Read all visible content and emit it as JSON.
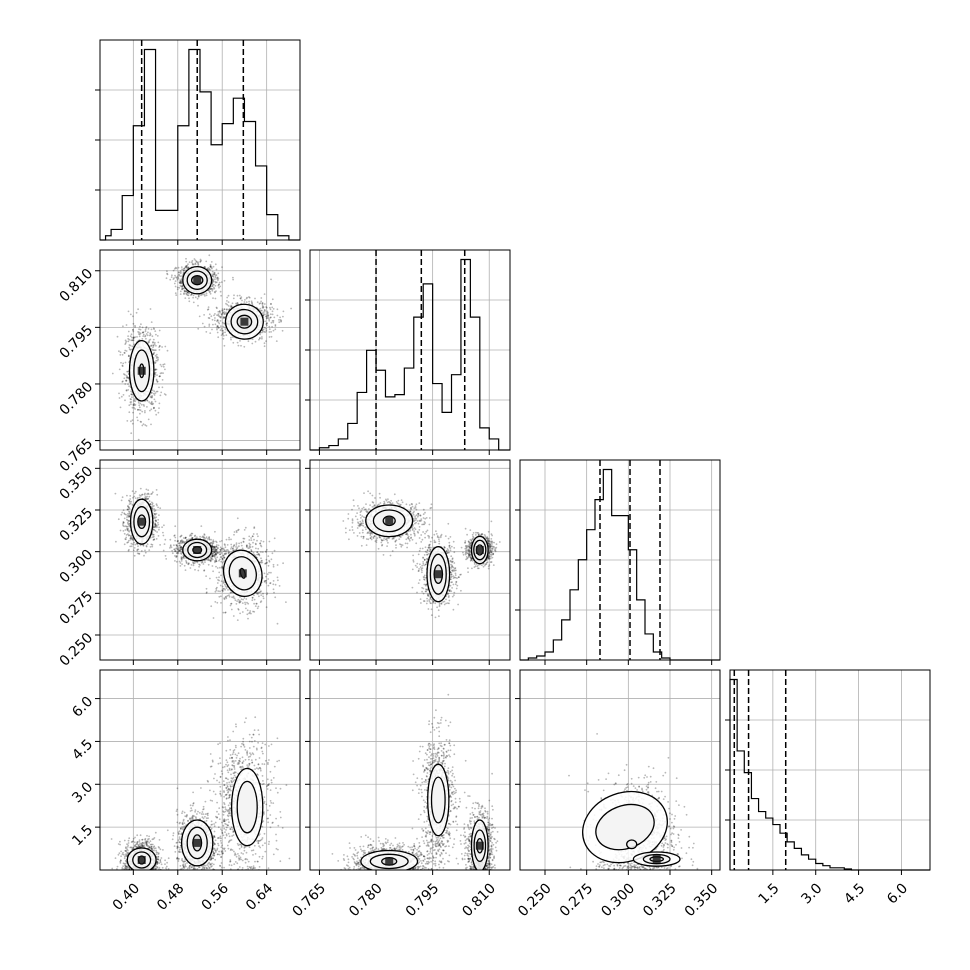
{
  "chart_data": {
    "type": "corner",
    "grid": true,
    "parameters": [
      {
        "range": [
          0.34,
          0.7
        ],
        "ticks": [
          "0.40",
          "0.48",
          "0.56",
          "0.64"
        ]
      },
      {
        "range": [
          0.7625,
          0.8155
        ],
        "ticks": [
          "0.765",
          "0.780",
          "0.795",
          "0.810"
        ]
      },
      {
        "range": [
          0.235,
          0.355
        ],
        "ticks": [
          "0.250",
          "0.275",
          "0.300",
          "0.325",
          "0.350"
        ]
      },
      {
        "range": [
          0.0,
          7.0
        ],
        "ticks": [
          "1.5",
          "3.0",
          "4.5",
          "6.0"
        ]
      }
    ],
    "histograms": [
      {
        "bin_edges": [
          0.34,
          0.35,
          0.36,
          0.37,
          0.38,
          0.39,
          0.4,
          0.41,
          0.42,
          0.43,
          0.44,
          0.45,
          0.46,
          0.47,
          0.48,
          0.49,
          0.5,
          0.51,
          0.52,
          0.53,
          0.54,
          0.55,
          0.56,
          0.57,
          0.58,
          0.59,
          0.6,
          0.61,
          0.62,
          0.63,
          0.64,
          0.65,
          0.66,
          0.67,
          0.68,
          0.69,
          0.7
        ],
        "counts": [
          0,
          0.02,
          0.05,
          0.05,
          0.21,
          0.21,
          0.54,
          0.54,
          0.9,
          0.9,
          0.14,
          0.14,
          0.14,
          0.14,
          0.54,
          0.54,
          0.9,
          0.9,
          0.7,
          0.7,
          0.45,
          0.45,
          0.55,
          0.55,
          0.67,
          0.67,
          0.56,
          0.56,
          0.35,
          0.35,
          0.12,
          0.12,
          0.02,
          0.02,
          0,
          0
        ],
        "quantiles": [
          0.415,
          0.515,
          0.598
        ]
      },
      {
        "bin_edges": [
          0.7625,
          0.765,
          0.7675,
          0.77,
          0.7725,
          0.775,
          0.7775,
          0.78,
          0.7825,
          0.785,
          0.7875,
          0.79,
          0.7925,
          0.795,
          0.7975,
          0.8,
          0.8025,
          0.805,
          0.8075,
          0.81,
          0.8125,
          0.8155
        ],
        "counts": [
          0,
          0.01,
          0.02,
          0.05,
          0.12,
          0.26,
          0.45,
          0.36,
          0.24,
          0.25,
          0.37,
          0.6,
          0.75,
          0.3,
          0.17,
          0.34,
          0.86,
          0.6,
          0.1,
          0.05,
          0
        ],
        "quantiles": [
          0.78,
          0.792,
          0.8035
        ]
      },
      {
        "bin_edges": [
          0.235,
          0.24,
          0.245,
          0.25,
          0.255,
          0.26,
          0.265,
          0.27,
          0.275,
          0.28,
          0.285,
          0.29,
          0.295,
          0.3,
          0.305,
          0.31,
          0.315,
          0.32,
          0.325,
          0.33,
          0.335,
          0.34,
          0.345,
          0.35,
          0.355
        ],
        "counts": [
          0,
          0.01,
          0.02,
          0.04,
          0.1,
          0.2,
          0.35,
          0.5,
          0.65,
          0.8,
          0.95,
          0.72,
          0.72,
          0.55,
          0.3,
          0.13,
          0.04,
          0.01,
          0,
          0,
          0,
          0,
          0,
          0
        ],
        "quantiles": [
          0.283,
          0.301,
          0.319
        ]
      },
      {
        "bin_edges": [
          0.0,
          0.25,
          0.5,
          0.75,
          1.0,
          1.25,
          1.5,
          1.75,
          2.0,
          2.25,
          2.5,
          2.75,
          3.0,
          3.25,
          3.5,
          3.75,
          4.0,
          4.25,
          4.5,
          4.75,
          5.0,
          5.5,
          6.0,
          6.5,
          7.0
        ],
        "counts": [
          0.88,
          0.55,
          0.45,
          0.33,
          0.27,
          0.24,
          0.21,
          0.17,
          0.13,
          0.1,
          0.07,
          0.05,
          0.03,
          0.02,
          0.01,
          0.01,
          0.005,
          0,
          0,
          0,
          0,
          0,
          0,
          0
        ],
        "quantiles": [
          0.15,
          0.65,
          1.95
        ]
      }
    ],
    "scatter_blobs": [
      {
        "pair": [
          1,
          0
        ],
        "cx": 0.415,
        "cy": 0.7835,
        "sx": 0.016,
        "sy": 0.0055
      },
      {
        "pair": [
          1,
          0
        ],
        "cx": 0.515,
        "cy": 0.8075,
        "sx": 0.018,
        "sy": 0.002
      },
      {
        "pair": [
          1,
          0
        ],
        "cx": 0.598,
        "cy": 0.797,
        "sx": 0.026,
        "sy": 0.0025
      },
      {
        "pair": [
          2,
          0
        ],
        "cx": 0.415,
        "cy": 0.318,
        "sx": 0.014,
        "sy": 0.008
      },
      {
        "pair": [
          2,
          0
        ],
        "cx": 0.515,
        "cy": 0.301,
        "sx": 0.02,
        "sy": 0.004
      },
      {
        "pair": [
          2,
          0
        ],
        "cx": 0.598,
        "cy": 0.287,
        "sx": 0.024,
        "sy": 0.01
      },
      {
        "pair": [
          2,
          1
        ],
        "cx": 0.7835,
        "cy": 0.318,
        "sx": 0.0045,
        "sy": 0.006
      },
      {
        "pair": [
          2,
          1
        ],
        "cx": 0.7965,
        "cy": 0.287,
        "sx": 0.0022,
        "sy": 0.009
      },
      {
        "pair": [
          2,
          1
        ],
        "cx": 0.8075,
        "cy": 0.301,
        "sx": 0.0016,
        "sy": 0.004
      },
      {
        "pair": [
          3,
          0
        ],
        "cx": 0.415,
        "cy": 0.35,
        "sx": 0.016,
        "sy": 0.35
      },
      {
        "pair": [
          3,
          0
        ],
        "cx": 0.515,
        "cy": 0.9,
        "sx": 0.018,
        "sy": 0.55
      },
      {
        "pair": [
          3,
          0
        ],
        "cx": 0.598,
        "cy": 2.3,
        "sx": 0.026,
        "sy": 1.1
      },
      {
        "pair": [
          3,
          1
        ],
        "cx": 0.7835,
        "cy": 0.3,
        "sx": 0.005,
        "sy": 0.3
      },
      {
        "pair": [
          3,
          1
        ],
        "cx": 0.7965,
        "cy": 2.5,
        "sx": 0.0022,
        "sy": 1.1
      },
      {
        "pair": [
          3,
          1
        ],
        "cx": 0.8075,
        "cy": 0.8,
        "sx": 0.0017,
        "sy": 0.6
      },
      {
        "pair": [
          3,
          2
        ],
        "cx": 0.305,
        "cy": 1.2,
        "sx": 0.012,
        "sy": 1.0
      }
    ],
    "contours": [
      {
        "pair": [
          1,
          0
        ],
        "cx": 0.415,
        "cy": 0.7835,
        "rx": [
          0.022,
          0.014,
          0.004
        ],
        "ry": [
          0.008,
          0.0055,
          0.0018
        ],
        "angle": 0
      },
      {
        "pair": [
          1,
          0
        ],
        "cx": 0.515,
        "cy": 0.8075,
        "rx": [
          0.026,
          0.018,
          0.01
        ],
        "ry": [
          0.0036,
          0.0024,
          0.0012
        ],
        "angle": 0
      },
      {
        "pair": [
          1,
          0
        ],
        "cx": 0.6,
        "cy": 0.7965,
        "rx": [
          0.034,
          0.024,
          0.013
        ],
        "ry": [
          0.0046,
          0.0032,
          0.0017
        ],
        "angle": -0.08
      },
      {
        "pair": [
          2,
          0
        ],
        "cx": 0.415,
        "cy": 0.318,
        "rx": [
          0.02,
          0.014,
          0.007
        ],
        "ry": [
          0.0135,
          0.009,
          0.004
        ],
        "angle": 0
      },
      {
        "pair": [
          2,
          0
        ],
        "cx": 0.515,
        "cy": 0.301,
        "rx": [
          0.026,
          0.017,
          0.008
        ],
        "ry": [
          0.0065,
          0.0045,
          0.002
        ],
        "angle": 0
      },
      {
        "pair": [
          2,
          0
        ],
        "cx": 0.597,
        "cy": 0.287,
        "rx": [
          0.034,
          0.024,
          0.004
        ],
        "ry": [
          0.014,
          0.01,
          0.003
        ],
        "angle": 0.25
      },
      {
        "pair": [
          2,
          1
        ],
        "cx": 0.7835,
        "cy": 0.3185,
        "rx": [
          0.0062,
          0.0042,
          0.0016
        ],
        "ry": [
          0.0095,
          0.0065,
          0.0028
        ],
        "angle": 0
      },
      {
        "pair": [
          2,
          1
        ],
        "cx": 0.7965,
        "cy": 0.2865,
        "rx": [
          0.003,
          0.0021,
          0.0011
        ],
        "ry": [
          0.0165,
          0.012,
          0.0055
        ],
        "angle": 0
      },
      {
        "pair": [
          2,
          1
        ],
        "cx": 0.8075,
        "cy": 0.301,
        "rx": [
          0.0022,
          0.0016,
          0.0009
        ],
        "ry": [
          0.0082,
          0.0058,
          0.003
        ],
        "angle": 0
      },
      {
        "pair": [
          3,
          0
        ],
        "cx": 0.415,
        "cy": 0.35,
        "rx": [
          0.026,
          0.016,
          0.006
        ],
        "ry": [
          0.42,
          0.28,
          0.14
        ],
        "angle": 0
      },
      {
        "pair": [
          3,
          0
        ],
        "cx": 0.515,
        "cy": 0.95,
        "rx": [
          0.028,
          0.018,
          0.008
        ],
        "ry": [
          0.8,
          0.55,
          0.28
        ],
        "angle": 0
      },
      {
        "pair": [
          3,
          0
        ],
        "cx": 0.605,
        "cy": 2.2,
        "rx": [
          0.028,
          0.018
        ],
        "ry": [
          1.35,
          0.9
        ],
        "angle": 0
      },
      {
        "pair": [
          3,
          1
        ],
        "cx": 0.7835,
        "cy": 0.3,
        "rx": [
          0.0075,
          0.005,
          0.002
        ],
        "ry": [
          0.38,
          0.25,
          0.13
        ],
        "angle": 0
      },
      {
        "pair": [
          3,
          1
        ],
        "cx": 0.7965,
        "cy": 2.45,
        "rx": [
          0.0028,
          0.0018
        ],
        "ry": [
          1.25,
          0.8
        ],
        "angle": 0
      },
      {
        "pair": [
          3,
          1
        ],
        "cx": 0.8075,
        "cy": 0.85,
        "rx": [
          0.0022,
          0.0015,
          0.0008
        ],
        "ry": [
          0.9,
          0.55,
          0.25
        ],
        "angle": 0
      },
      {
        "pair": [
          3,
          2
        ],
        "cx": 0.298,
        "cy": 1.5,
        "rx": [
          0.026,
          0.018
        ],
        "ry": [
          1.2,
          0.75
        ],
        "angle": 0.35
      },
      {
        "pair": [
          3,
          2
        ],
        "cx": 0.317,
        "cy": 0.38,
        "rx": [
          0.014,
          0.008,
          0.004
        ],
        "ry": [
          0.25,
          0.16,
          0.08
        ],
        "angle": 0
      },
      {
        "pair": [
          3,
          2
        ],
        "cx": 0.302,
        "cy": 0.9,
        "rx": [
          0.003
        ],
        "ry": [
          0.15
        ],
        "angle": 0
      }
    ]
  }
}
